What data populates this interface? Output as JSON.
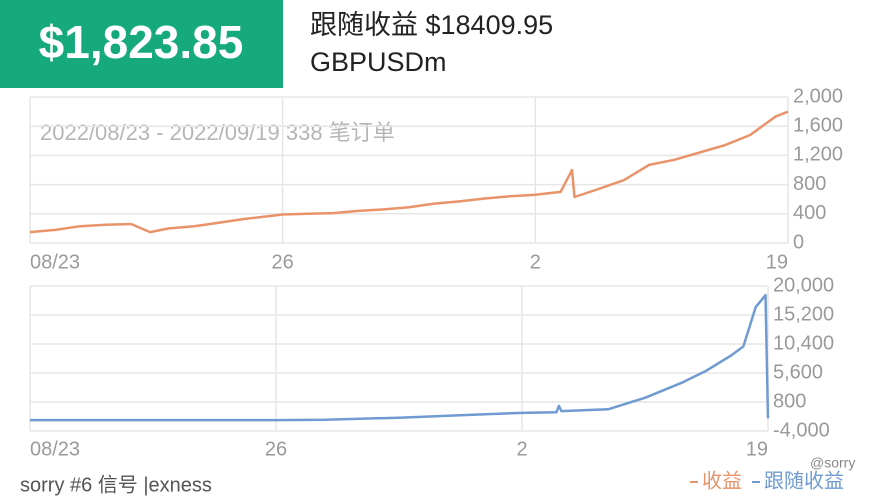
{
  "header": {
    "amount": "$1,823.85",
    "follow_profit": "跟随收益 $18409.95",
    "symbol": "GBPUSDm"
  },
  "footer": {
    "signal": "sorry #6 信号 |exness",
    "watermark": "@sorry"
  },
  "chart_data": [
    {
      "type": "line",
      "subtitle": "2022/08/23 - 2022/09/19 338 笔订单",
      "x": [
        0,
        2,
        4,
        6,
        8,
        9.5,
        11,
        13,
        15,
        17,
        20,
        22,
        24,
        26,
        28,
        30,
        32,
        34,
        36,
        38,
        40,
        42,
        42.9,
        43.1,
        45,
        47,
        49,
        51,
        53,
        55,
        57,
        59,
        60
      ],
      "series": [
        {
          "name": "收益",
          "color": "#e8936a",
          "values": [
            150,
            180,
            230,
            250,
            260,
            150,
            200,
            230,
            280,
            330,
            390,
            400,
            410,
            440,
            460,
            490,
            540,
            570,
            610,
            640,
            660,
            700,
            1000,
            630,
            740,
            860,
            1070,
            1140,
            1240,
            1340,
            1480,
            1730,
            1800
          ]
        }
      ],
      "xlim": [
        0,
        60
      ],
      "xticks": [
        {
          "value": 0,
          "label": "08/23"
        },
        {
          "value": 20,
          "label": "26"
        },
        {
          "value": 40,
          "label": "2"
        },
        {
          "value": 60,
          "label": "19"
        }
      ],
      "ylim": [
        0,
        2000
      ],
      "yticks": [
        0,
        400,
        800,
        {
          "value": 1200,
          "label": "1,200"
        },
        {
          "value": 1600,
          "label": "1,600"
        },
        {
          "value": 2000,
          "label": "2,000"
        }
      ],
      "grid": true
    },
    {
      "type": "line",
      "x": [
        0,
        10,
        20,
        24,
        30,
        36,
        40,
        42.8,
        43,
        43.2,
        47,
        50,
        53,
        55,
        57,
        58,
        59,
        59.6,
        59.8,
        60
      ],
      "series": [
        {
          "name": "跟随收益",
          "color": "#6f9bd1",
          "values": [
            -2200,
            -2200,
            -2200,
            -2150,
            -1800,
            -1300,
            -1000,
            -900,
            150,
            -700,
            -400,
            1500,
            4000,
            6000,
            8500,
            10000,
            16500,
            18000,
            18500,
            -1900
          ]
        }
      ],
      "xlim": [
        0,
        60
      ],
      "xticks": [
        {
          "value": 0,
          "label": "08/23"
        },
        {
          "value": 20,
          "label": "26"
        },
        {
          "value": 40,
          "label": "2"
        },
        {
          "value": 60,
          "label": "19"
        }
      ],
      "ylim": [
        -4000,
        20000
      ],
      "yticks": [
        {
          "value": -4000,
          "label": "-4,000"
        },
        800,
        {
          "value": 5600,
          "label": "5,600"
        },
        {
          "value": 10400,
          "label": "10,400"
        },
        {
          "value": 15200,
          "label": "15,200"
        },
        {
          "value": 20000,
          "label": "20,000"
        }
      ],
      "grid": true
    }
  ]
}
